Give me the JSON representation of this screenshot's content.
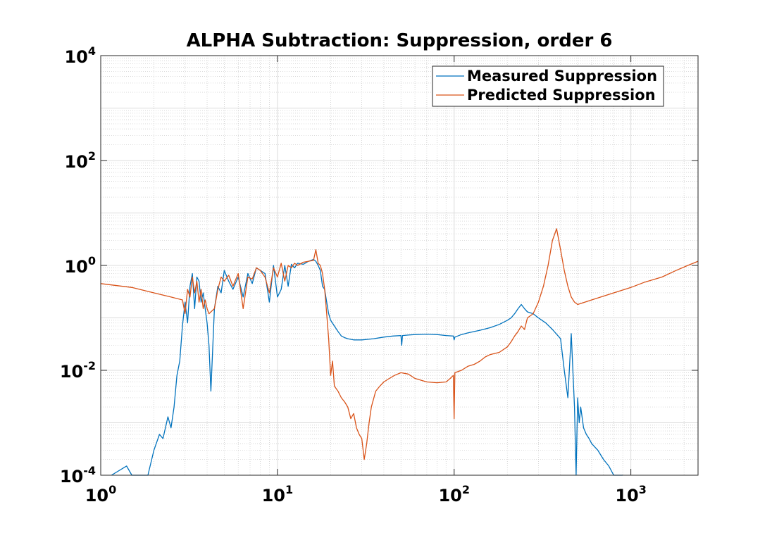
{
  "chart_data": {
    "type": "line",
    "title": "ALPHA Subtraction: Suppression, order 6",
    "xlabel": "",
    "ylabel": "",
    "xscale": "log",
    "yscale": "log",
    "xlim": [
      1,
      2400
    ],
    "ylim": [
      0.0001,
      10000
    ],
    "grid": "major and minor",
    "legend_placement": "top-right",
    "x_ticks": [
      {
        "base": "10",
        "exp": "0",
        "value": 1
      },
      {
        "base": "10",
        "exp": "1",
        "value": 10
      },
      {
        "base": "10",
        "exp": "2",
        "value": 100
      },
      {
        "base": "10",
        "exp": "3",
        "value": 1000
      }
    ],
    "y_ticks": [
      {
        "base": "10",
        "exp": "-4",
        "value": 0.0001
      },
      {
        "base": "10",
        "exp": "-2",
        "value": 0.01
      },
      {
        "base": "10",
        "exp": "0",
        "value": 1
      },
      {
        "base": "10",
        "exp": "2",
        "value": 100
      },
      {
        "base": "10",
        "exp": "4",
        "value": 10000
      }
    ],
    "series": [
      {
        "name": "Measured Suppression",
        "color": "#0072BD",
        "x": [
          1.15,
          1.4,
          1.5,
          1.65,
          1.85,
          2.0,
          2.15,
          2.25,
          2.4,
          2.5,
          2.6,
          2.7,
          2.8,
          2.9,
          3.0,
          3.1,
          3.2,
          3.3,
          3.4,
          3.5,
          3.6,
          3.7,
          3.8,
          3.9,
          4.0,
          4.1,
          4.2,
          4.4,
          4.6,
          4.8,
          5.0,
          5.3,
          5.6,
          6.0,
          6.4,
          6.8,
          7.2,
          7.6,
          8.0,
          8.5,
          9.0,
          9.5,
          10,
          10.5,
          11,
          11.5,
          12,
          12.5,
          13,
          14,
          15,
          16,
          16.5,
          17,
          17.5,
          18,
          18.5,
          19,
          19.5,
          20,
          21,
          22,
          23,
          24,
          25,
          27,
          30,
          35,
          40,
          45,
          50,
          50.5,
          51,
          55,
          60,
          70,
          80,
          90,
          99,
          100,
          101,
          110,
          120,
          140,
          160,
          180,
          200,
          210,
          220,
          230,
          240,
          250,
          260,
          280,
          300,
          330,
          360,
          400,
          420,
          440,
          460,
          480,
          490,
          500,
          510,
          520,
          540,
          560,
          580,
          600,
          650,
          700,
          750,
          800,
          850,
          900
        ],
        "y": [
          0.0001,
          0.00015,
          0.0001,
          7e-05,
          0.0001,
          0.0003,
          0.0006,
          0.0005,
          0.0013,
          0.0008,
          0.002,
          0.008,
          0.015,
          0.07,
          0.2,
          0.08,
          0.4,
          0.7,
          0.15,
          0.6,
          0.5,
          0.2,
          0.3,
          0.15,
          0.08,
          0.03,
          0.004,
          0.15,
          0.4,
          0.3,
          0.8,
          0.5,
          0.35,
          0.6,
          0.25,
          0.7,
          0.45,
          0.9,
          0.8,
          0.7,
          0.2,
          1.0,
          0.25,
          0.35,
          1.0,
          0.4,
          1.05,
          0.9,
          1.1,
          1.05,
          1.2,
          1.3,
          1.2,
          1.0,
          0.8,
          0.4,
          0.35,
          0.2,
          0.12,
          0.09,
          0.07,
          0.055,
          0.045,
          0.042,
          0.04,
          0.038,
          0.038,
          0.04,
          0.043,
          0.045,
          0.046,
          0.03,
          0.046,
          0.047,
          0.048,
          0.049,
          0.048,
          0.046,
          0.045,
          0.038,
          0.043,
          0.048,
          0.052,
          0.058,
          0.065,
          0.075,
          0.09,
          0.1,
          0.12,
          0.15,
          0.18,
          0.15,
          0.13,
          0.12,
          0.1,
          0.08,
          0.06,
          0.04,
          0.01,
          0.003,
          0.05,
          0.002,
          0.0001,
          0.003,
          0.001,
          0.002,
          0.0008,
          0.0006,
          0.0005,
          0.0004,
          0.0003,
          0.0002,
          0.00015,
          0.0001,
          0.0001,
          0.0001
        ]
      },
      {
        "name": "Predicted Suppression",
        "color": "#D95319",
        "x": [
          1.0,
          1.5,
          2.0,
          2.5,
          2.9,
          3.0,
          3.1,
          3.2,
          3.3,
          3.4,
          3.5,
          3.6,
          3.7,
          3.8,
          3.9,
          4.0,
          4.1,
          4.2,
          4.4,
          4.6,
          4.8,
          5.0,
          5.3,
          5.6,
          6.0,
          6.4,
          6.8,
          7.2,
          7.6,
          8.0,
          8.5,
          9.0,
          9.5,
          10,
          10.5,
          11,
          11.5,
          12,
          12.5,
          13,
          14,
          15,
          16,
          16.5,
          17,
          17.5,
          18,
          18.5,
          19,
          19.5,
          20,
          20.5,
          21,
          22,
          23,
          24,
          25,
          26,
          27,
          28,
          29,
          30,
          31,
          32,
          33,
          34,
          36,
          38,
          40,
          43,
          46,
          50,
          55,
          60,
          70,
          80,
          90,
          95,
          99,
          100,
          101,
          110,
          120,
          130,
          140,
          150,
          160,
          180,
          200,
          210,
          220,
          230,
          240,
          250,
          260,
          280,
          300,
          320,
          340,
          360,
          380,
          400,
          420,
          440,
          460,
          480,
          500,
          550,
          600,
          700,
          800,
          1000,
          1200,
          1500,
          1800,
          2100,
          2400
        ],
        "y": [
          0.45,
          0.38,
          0.3,
          0.25,
          0.22,
          0.12,
          0.35,
          0.25,
          0.6,
          0.3,
          0.5,
          0.2,
          0.35,
          0.15,
          0.22,
          0.15,
          0.12,
          0.13,
          0.15,
          0.35,
          0.6,
          0.5,
          0.65,
          0.4,
          0.7,
          0.15,
          0.6,
          0.55,
          0.9,
          0.8,
          0.6,
          0.3,
          0.9,
          0.6,
          1.1,
          0.5,
          1.0,
          0.9,
          1.1,
          1.0,
          1.15,
          1.2,
          1.25,
          2.0,
          1.1,
          1.0,
          0.7,
          0.35,
          0.12,
          0.04,
          0.008,
          0.015,
          0.005,
          0.004,
          0.003,
          0.0025,
          0.002,
          0.0012,
          0.0015,
          0.0008,
          0.0006,
          0.0005,
          0.0002,
          0.0004,
          0.001,
          0.002,
          0.004,
          0.005,
          0.006,
          0.007,
          0.008,
          0.009,
          0.0085,
          0.007,
          0.006,
          0.0058,
          0.006,
          0.007,
          0.008,
          0.0012,
          0.009,
          0.01,
          0.012,
          0.013,
          0.015,
          0.018,
          0.02,
          0.022,
          0.028,
          0.035,
          0.045,
          0.055,
          0.07,
          0.06,
          0.1,
          0.12,
          0.2,
          0.4,
          1.0,
          3.0,
          5.0,
          2.0,
          0.8,
          0.4,
          0.25,
          0.2,
          0.18,
          0.2,
          0.22,
          0.26,
          0.3,
          0.38,
          0.48,
          0.6,
          0.8,
          1.0,
          1.2
        ]
      }
    ]
  }
}
